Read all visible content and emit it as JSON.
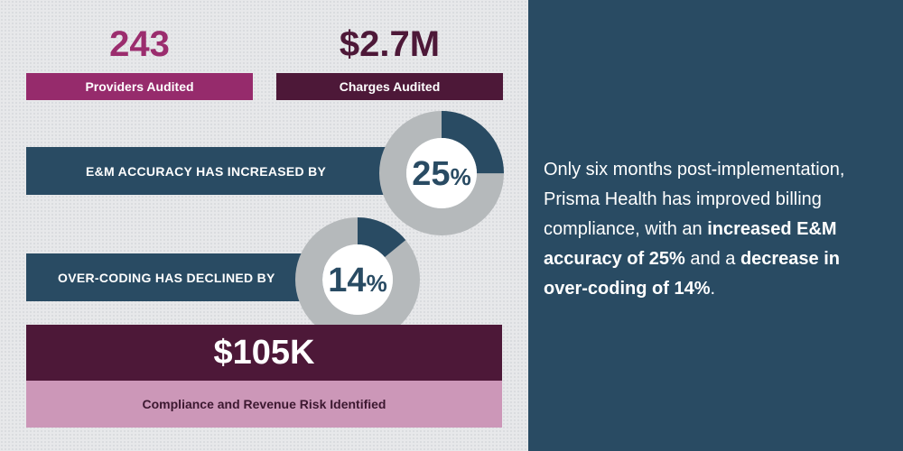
{
  "stats": [
    {
      "value": "243",
      "label": "Providers Audited",
      "value_color": "#9b2d6e",
      "label_bg": "#962b6c"
    },
    {
      "value": "$2.7M",
      "label": "Charges Audited",
      "value_color": "#4d1838",
      "label_bg": "#4d1838"
    }
  ],
  "metrics": [
    {
      "label": "E&M ACCURACY HAS INCREASED BY",
      "percent": 25,
      "value_text": "25",
      "unit": "%"
    },
    {
      "label": "OVER-CODING HAS DECLINED BY",
      "percent": 14,
      "value_text": "14",
      "unit": "%"
    }
  ],
  "risk": {
    "value": "$105K",
    "label": "Compliance and Revenue Risk Identified"
  },
  "summary": {
    "part1": "Only six months post-implementation, Prisma Health has improved billing compliance, with an ",
    "bold1": "increased E&M accuracy of 25%",
    "part2": " and a ",
    "bold2": "decrease in over-coding of 14%",
    "part3": "."
  },
  "colors": {
    "navy": "#294b63",
    "donut_track": "#b5b9bb",
    "plum": "#4d1838",
    "magenta": "#962b6c",
    "pink": "#cc97b8"
  }
}
